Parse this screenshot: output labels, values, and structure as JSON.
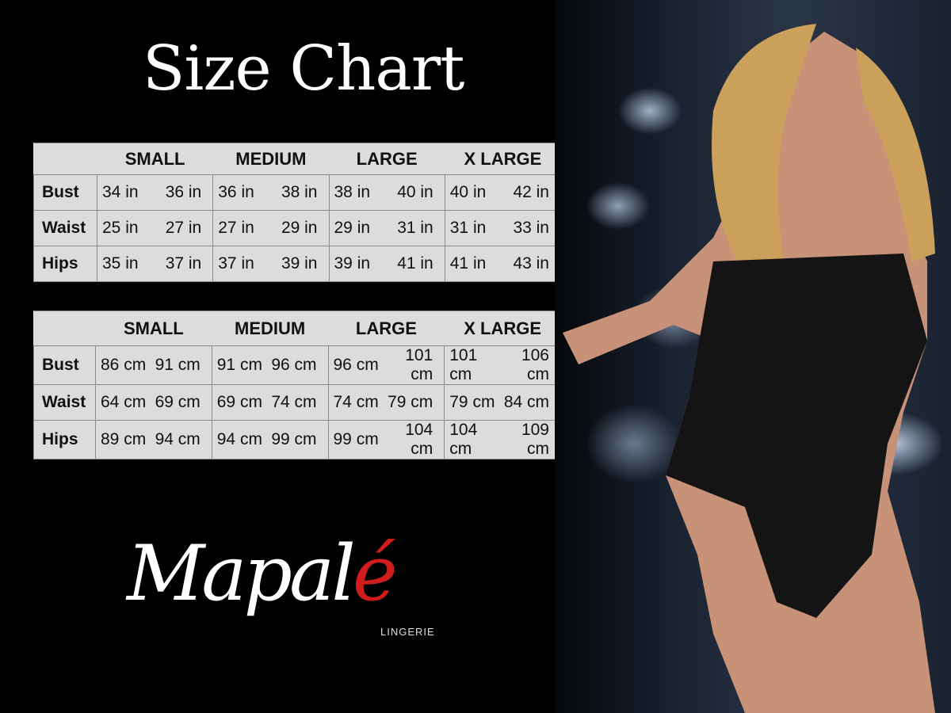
{
  "title": "Size Chart",
  "tables": [
    {
      "headers": [
        "SMALL",
        "MEDIUM",
        "LARGE",
        "X LARGE"
      ],
      "rows": [
        {
          "label": "Bust",
          "values": [
            "34 in",
            "36 in",
            "36 in",
            "38 in",
            "38 in",
            "40 in",
            "40 in",
            "42 in"
          ]
        },
        {
          "label": "Waist",
          "values": [
            "25 in",
            "27 in",
            "27 in",
            "29 in",
            "29 in",
            "31 in",
            "31 in",
            "33 in"
          ]
        },
        {
          "label": "Hips",
          "values": [
            "35 in",
            "37 in",
            "37 in",
            "39 in",
            "39 in",
            "41 in",
            "41 in",
            "43 in"
          ]
        }
      ]
    },
    {
      "headers": [
        "SMALL",
        "MEDIUM",
        "LARGE",
        "X LARGE"
      ],
      "rows": [
        {
          "label": "Bust",
          "values": [
            "86 cm",
            "91 cm",
            "91 cm",
            "96 cm",
            "96 cm",
            "101 cm",
            "101 cm",
            "106 cm"
          ]
        },
        {
          "label": "Waist",
          "values": [
            "64 cm",
            "69 cm",
            "69 cm",
            "74 cm",
            "74 cm",
            "79 cm",
            "79 cm",
            "84 cm"
          ]
        },
        {
          "label": "Hips",
          "values": [
            "89 cm",
            "94 cm",
            "94 cm",
            "99 cm",
            "99 cm",
            "104 cm",
            "104 cm",
            "109 cm"
          ]
        }
      ]
    }
  ],
  "logo": {
    "name_main": "Mapal",
    "name_accent": "é",
    "subtitle": "LINGERIE",
    "accent_color": "#d01c1c"
  }
}
